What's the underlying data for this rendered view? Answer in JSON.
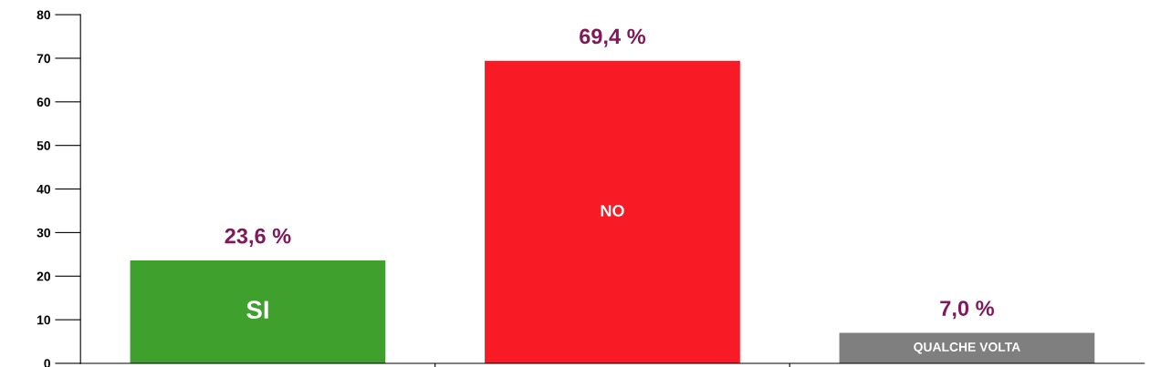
{
  "chart_data": {
    "type": "bar",
    "categories": [
      "SI",
      "NO",
      "QUALCHE VOLTA"
    ],
    "values": [
      23.6,
      69.4,
      7.0
    ],
    "colors": [
      "#3fa02e",
      "#f81a24",
      "#7f7f7f"
    ],
    "value_labels": [
      "23,6 %",
      "69,4 %",
      "7,0 %"
    ],
    "ylim": [
      0,
      80
    ],
    "yticks": [
      0,
      10,
      20,
      30,
      40,
      50,
      60,
      70,
      80
    ],
    "grid": false,
    "legend": false
  }
}
